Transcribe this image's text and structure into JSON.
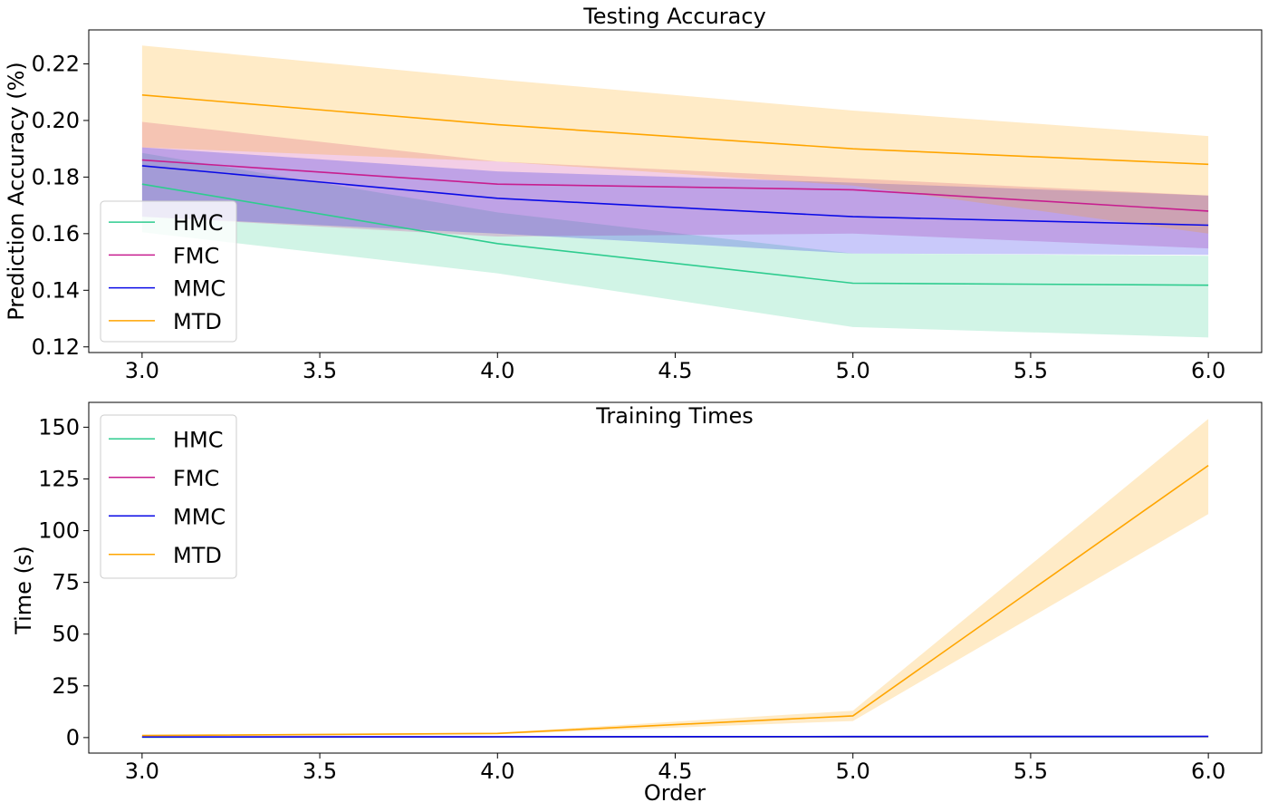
{
  "chart_data": [
    {
      "type": "line",
      "title": "Testing Accuracy",
      "xlabel": "",
      "ylabel": "Prediction Accuracy (%)",
      "x": [
        3.0,
        4.0,
        5.0,
        6.0
      ],
      "xlim": [
        2.85,
        6.15
      ],
      "ylim": [
        0.118,
        0.232
      ],
      "xticks": [
        3.0,
        3.5,
        4.0,
        4.5,
        5.0,
        5.5,
        6.0
      ],
      "xtick_labels": [
        "3.0",
        "3.5",
        "4.0",
        "4.5",
        "5.0",
        "5.5",
        "6.0"
      ],
      "yticks": [
        0.12,
        0.14,
        0.16,
        0.18,
        0.2,
        0.22
      ],
      "ytick_labels": [
        "0.12",
        "0.14",
        "0.16",
        "0.18",
        "0.20",
        "0.22"
      ],
      "legend_position": "lower-left",
      "grid": false,
      "series": [
        {
          "name": "HMC",
          "color": "#2ecc8f",
          "values": [
            0.1775,
            0.1565,
            0.1425,
            0.1418
          ],
          "lower": [
            0.1605,
            0.146,
            0.127,
            0.1233
          ],
          "upper": [
            0.1885,
            0.1675,
            0.153,
            0.1522
          ]
        },
        {
          "name": "FMC",
          "color": "#c71e8f",
          "values": [
            0.186,
            0.1775,
            0.1755,
            0.168
          ],
          "lower": [
            0.166,
            0.159,
            0.16,
            0.1548
          ],
          "upper": [
            0.1995,
            0.1855,
            0.1795,
            0.1735
          ]
        },
        {
          "name": "MMC",
          "color": "#0a0ae6",
          "values": [
            0.184,
            0.1725,
            0.166,
            0.163
          ],
          "lower": [
            0.166,
            0.16,
            0.153,
            0.1525
          ],
          "upper": [
            0.1905,
            0.182,
            0.178,
            0.1735
          ]
        },
        {
          "name": "MTD",
          "color": "#ffa500",
          "values": [
            0.209,
            0.1985,
            0.19,
            0.1845
          ],
          "lower": [
            0.1905,
            0.1855,
            0.177,
            0.16
          ],
          "upper": [
            0.2265,
            0.2145,
            0.2035,
            0.1945
          ]
        }
      ]
    },
    {
      "type": "line",
      "title": "Training Times",
      "xlabel": "Order",
      "ylabel": "Time (s)",
      "x": [
        3.0,
        4.0,
        5.0,
        6.0
      ],
      "xlim": [
        2.85,
        6.15
      ],
      "ylim": [
        -7.5,
        162
      ],
      "xticks": [
        3.0,
        3.5,
        4.0,
        4.5,
        5.0,
        5.5,
        6.0
      ],
      "xtick_labels": [
        "3.0",
        "3.5",
        "4.0",
        "4.5",
        "5.0",
        "5.5",
        "6.0"
      ],
      "yticks": [
        0,
        25,
        50,
        75,
        100,
        125,
        150
      ],
      "ytick_labels": [
        "0",
        "25",
        "50",
        "75",
        "100",
        "125",
        "150"
      ],
      "legend_position": "upper-left",
      "grid": false,
      "series": [
        {
          "name": "HMC",
          "color": "#2ecc8f",
          "values": [
            0.2,
            0.3,
            0.3,
            0.4
          ],
          "lower": [
            0.1,
            0.2,
            0.2,
            0.3
          ],
          "upper": [
            0.3,
            0.4,
            0.4,
            0.5
          ]
        },
        {
          "name": "FMC",
          "color": "#c71e8f",
          "values": [
            0.3,
            0.4,
            0.4,
            0.5
          ],
          "lower": [
            0.2,
            0.3,
            0.3,
            0.4
          ],
          "upper": [
            0.4,
            0.5,
            0.5,
            0.6
          ]
        },
        {
          "name": "MMC",
          "color": "#0a0ae6",
          "values": [
            0.3,
            0.4,
            0.5,
            0.6
          ],
          "lower": [
            0.2,
            0.3,
            0.4,
            0.5
          ],
          "upper": [
            0.4,
            0.5,
            0.6,
            0.7
          ]
        },
        {
          "name": "MTD",
          "color": "#ffa500",
          "values": [
            1.0,
            2.0,
            10.5,
            131.5
          ],
          "lower": [
            0.7,
            1.6,
            8.0,
            108.0
          ],
          "upper": [
            1.3,
            2.4,
            13.0,
            154.0
          ]
        }
      ]
    }
  ]
}
